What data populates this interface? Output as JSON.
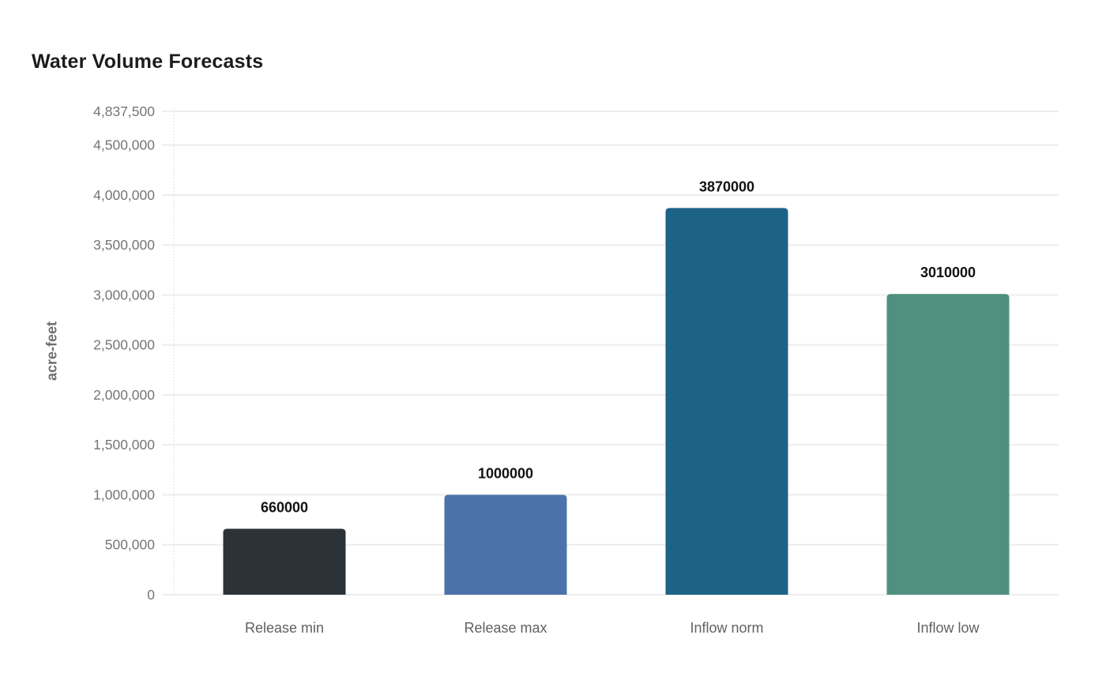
{
  "chart": {
    "title": "Water Volume Forecasts",
    "ylabel": "acre-feet"
  },
  "chart_data": {
    "type": "bar",
    "title": "Water Volume Forecasts",
    "xlabel": "",
    "ylabel": "acre-feet",
    "categories": [
      "Release min",
      "Release max",
      "Inflow norm",
      "Inflow low"
    ],
    "values": [
      660000,
      1000000,
      3870000,
      3010000
    ],
    "value_labels": [
      "660000",
      "1000000",
      "3870000",
      "3010000"
    ],
    "bar_colors": [
      "#2b3338",
      "#4b73aa",
      "#1d6287",
      "#4f907f"
    ],
    "ylim": [
      0,
      4837500
    ],
    "y_tick_values": [
      0,
      500000,
      1000000,
      1500000,
      2000000,
      2500000,
      3000000,
      3500000,
      4000000,
      4500000,
      4837500
    ],
    "y_tick_labels": [
      "0",
      "500,000",
      "1,000,000",
      "1,500,000",
      "2,000,000",
      "2,500,000",
      "3,000,000",
      "3,500,000",
      "4,000,000",
      "4,500,000",
      "4,837,500"
    ],
    "grid": true,
    "legend": "none",
    "colors": {
      "background": "#ffffff",
      "gridline": "#ededed",
      "axis_line": "#e2e2e2",
      "tick_label": "#757575",
      "value_label": "#111111",
      "category_label": "#616161",
      "title": "#1c1c1c",
      "ylabel": "#6e6e6e"
    }
  }
}
